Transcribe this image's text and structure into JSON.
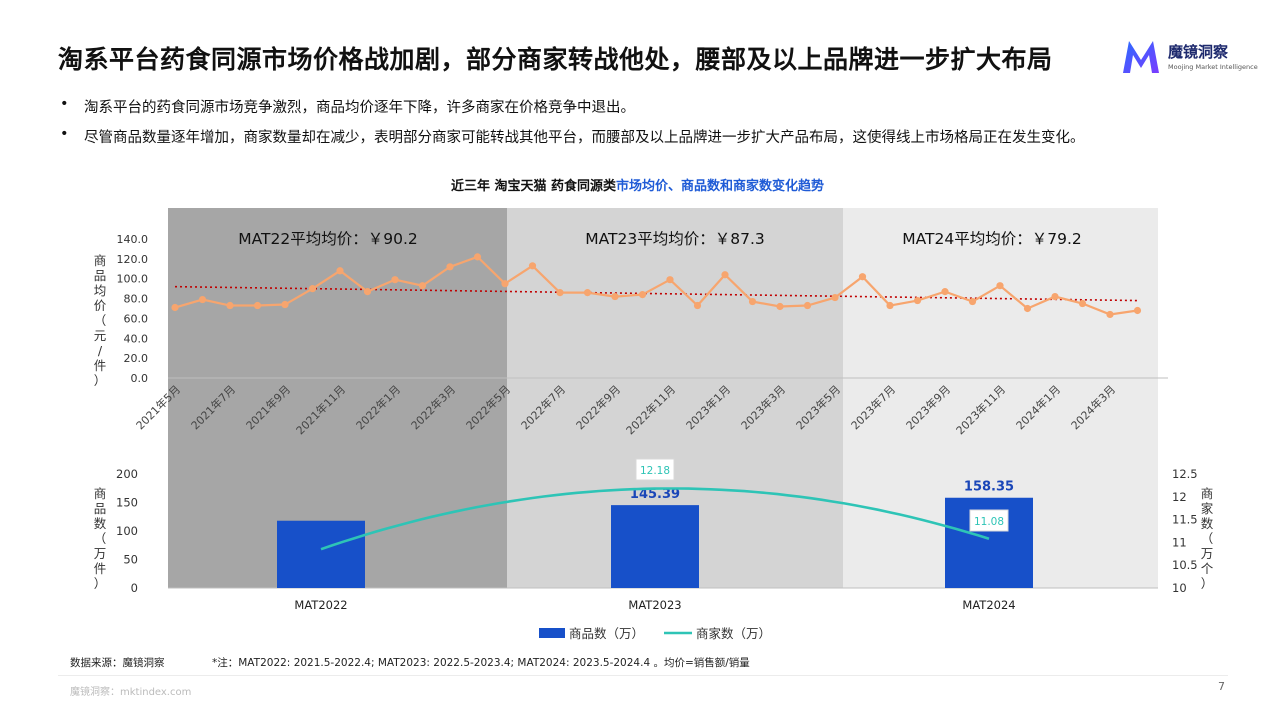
{
  "header": {
    "title": "淘系平台药食同源市场价格战加剧，部分商家转战他处，腰部及以上品牌进一步扩大布局",
    "logo_name": "魔镜洞察",
    "logo_sub": "Moojing Market Intelligence",
    "logo_color": "#1e3bd6"
  },
  "bullets": [
    "淘系平台的药食同源市场竞争激烈，商品均价逐年下降，许多商家在价格竞争中退出。",
    "尽管商品数量逐年增加，商家数量却在减少，表明部分商家可能转战其他平台，而腰部及以上品牌进一步扩大产品布局，这使得线上市场格局正在发生变化。"
  ],
  "chart_title": {
    "prefix": "近三年 淘宝天猫 药食同源类",
    "highlight": "市场均价、商品数和商家数变化趋势"
  },
  "footer": {
    "source": "数据来源：魔镜洞察",
    "note": "*注：MAT2022: 2021.5-2022.4; MAT2023: 2022.5-2023.4; MAT2024: 2023.5-2024.4 。均价=销售额/销量",
    "site": "魔镜洞察：mktindex.com",
    "page": "7"
  },
  "chart_data": [
    {
      "type": "line",
      "ylabel": "商品均价（元/件）",
      "ylim": [
        0,
        140
      ],
      "yticks": [
        "0.0",
        "20.0",
        "40.0",
        "60.0",
        "80.0",
        "100.0",
        "120.0",
        "140.0"
      ],
      "x": [
        "2021年5月",
        "2021年6月",
        "2021年7月",
        "2021年8月",
        "2021年9月",
        "2021年10月",
        "2021年11月",
        "2021年12月",
        "2022年1月",
        "2022年2月",
        "2022年3月",
        "2022年4月",
        "2022年5月",
        "2022年6月",
        "2022年7月",
        "2022年8月",
        "2022年9月",
        "2022年10月",
        "2022年11月",
        "2022年12月",
        "2023年1月",
        "2023年2月",
        "2023年3月",
        "2023年4月",
        "2023年5月",
        "2023年6月",
        "2023年7月",
        "2023年8月",
        "2023年9月",
        "2023年10月",
        "2023年11月",
        "2023年12月",
        "2024年1月",
        "2024年2月",
        "2024年3月",
        "2024年4月"
      ],
      "xtick_labels": [
        "2021年5月",
        "2021年7月",
        "2021年9月",
        "2021年11月",
        "2022年1月",
        "2022年3月",
        "2022年5月",
        "2022年7月",
        "2022年9月",
        "2022年11月",
        "2023年1月",
        "2023年3月",
        "2023年5月",
        "2023年7月",
        "2023年9月",
        "2023年11月",
        "2024年1月",
        "2024年3月"
      ],
      "series": [
        {
          "values": [
            71,
            79,
            73,
            73,
            74,
            90,
            108,
            87,
            99,
            93,
            112,
            122,
            95,
            113,
            86,
            86,
            82,
            84,
            99,
            73,
            104,
            77,
            72,
            73,
            81,
            102,
            73,
            78,
            87,
            77,
            93,
            70,
            82,
            75,
            64,
            68
          ],
          "color": "#f7a56e"
        }
      ],
      "trendline": {
        "start": 92,
        "end": 78,
        "color": "#c00000"
      },
      "periods": [
        {
          "label": "MAT22平均均价：￥90.2",
          "color": "#a6a6a6"
        },
        {
          "label": "MAT23平均均价：￥87.3",
          "color": "#d4d4d4"
        },
        {
          "label": "MAT24平均均价：￥79.2",
          "color": "#ebebeb"
        }
      ]
    },
    {
      "type": "bar",
      "categories": [
        "MAT2022",
        "MAT2023",
        "MAT2024"
      ],
      "ylabel_left": "商品数（万件）",
      "ylabel_right": "商家数（万个）",
      "ylim_left": [
        0,
        200
      ],
      "yticks_left": [
        "0",
        "50",
        "100",
        "150",
        "200"
      ],
      "ylim_right": [
        10,
        12.5
      ],
      "yticks_right": [
        "10",
        "10.5",
        "11",
        "11.5",
        "12",
        "12.5"
      ],
      "series": [
        {
          "name": "商品数（万）",
          "type": "bar",
          "values": [
            118,
            145.39,
            158.35
          ],
          "labels": [
            "",
            "145.39",
            "158.35"
          ],
          "color": "#1750c9"
        },
        {
          "name": "商家数（万）",
          "type": "line",
          "axis": "right",
          "values": [
            10.85,
            12.18,
            11.08
          ],
          "labels": [
            "",
            "12.18",
            "11.08"
          ],
          "color": "#2ec4b6"
        }
      ]
    }
  ]
}
